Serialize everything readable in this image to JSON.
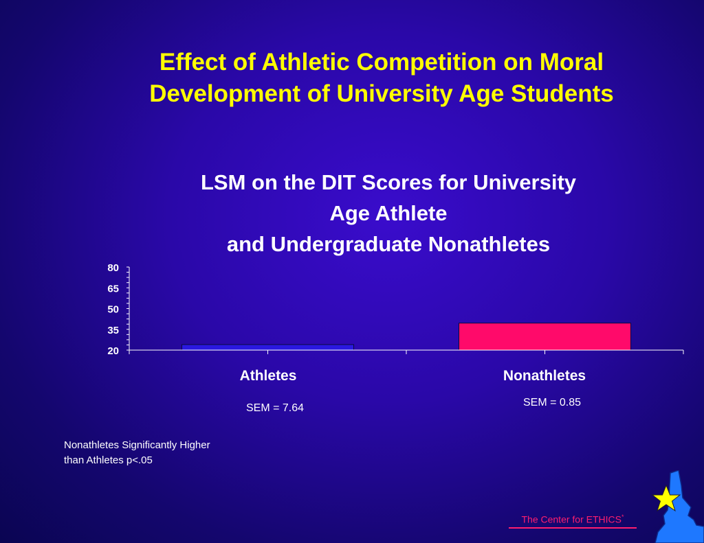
{
  "slide": {
    "title_line1": "Effect of Athletic Competition on Moral",
    "title_line2": "Development of University Age Students",
    "note_line1": "Nonathletes Significantly Higher",
    "note_line2": "than Athletes p<.05",
    "footer_text": "The Center for ETHICS",
    "footer_mark": "*"
  },
  "chart_data": {
    "type": "bar",
    "title_lines": [
      "LSM on the DIT Scores for University",
      "Age Athlete",
      "and Undergraduate Nonathletes"
    ],
    "categories": [
      "Athletes",
      "Nonathletes"
    ],
    "values": [
      24,
      39.5
    ],
    "bar_colors": [
      "#2a18e0",
      "#ff0a6a"
    ],
    "sem_labels": [
      "SEM = 7.64",
      "SEM = 0.85"
    ],
    "y_ticks": [
      20,
      35,
      50,
      65,
      80
    ],
    "ylim": [
      20,
      80
    ],
    "xlabel": "",
    "ylabel": "",
    "grid": false,
    "legend": "none"
  },
  "colors": {
    "title": "#ffff00",
    "text": "#ffffff",
    "accent": "#ff1e6e"
  }
}
